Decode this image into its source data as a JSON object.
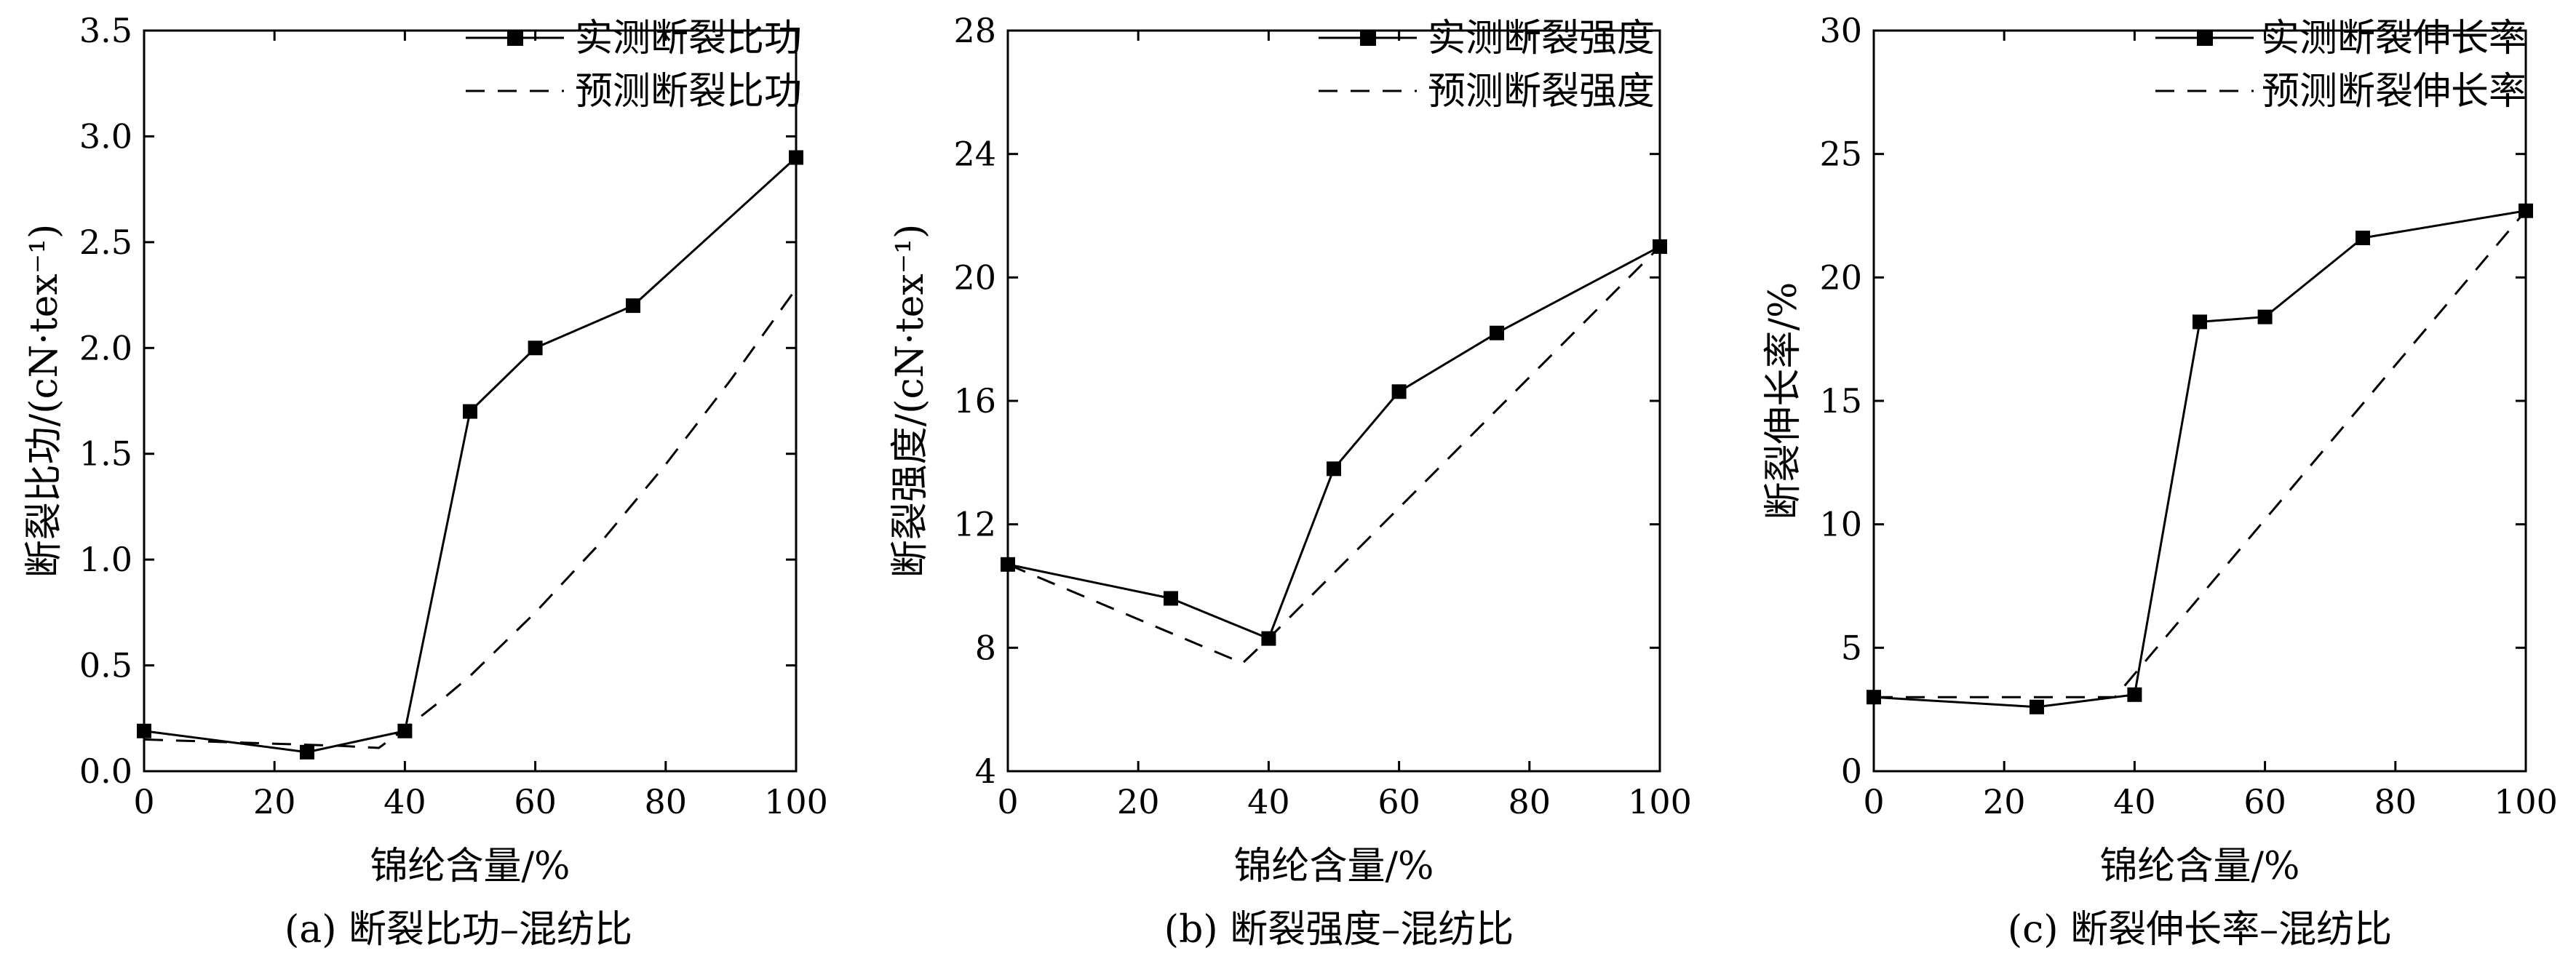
{
  "chart_data": [
    {
      "type": "line",
      "caption": "(a) 断裂比功–混纺比",
      "xlabel": "锦纶含量/%",
      "ylabel": "断裂比功/(cN·tex⁻¹)",
      "xlim": [
        0,
        100
      ],
      "ylim": [
        0,
        3.5
      ],
      "x_ticks": [
        0,
        20,
        40,
        60,
        80,
        100
      ],
      "y_ticks": [
        0.0,
        0.5,
        1.0,
        1.5,
        2.0,
        2.5,
        3.0,
        3.5
      ],
      "y_tick_labels": [
        "0.0",
        "0.5",
        "1.0",
        "1.5",
        "2.0",
        "2.5",
        "3.0",
        "3.5"
      ],
      "legend_position": "top-right",
      "grid": false,
      "series": [
        {
          "name": "实测断裂比功",
          "style": "solid-square-markers",
          "x": [
            0,
            25,
            40,
            50,
            60,
            75,
            100
          ],
          "y": [
            0.19,
            0.09,
            0.19,
            1.7,
            2.0,
            2.2,
            2.9
          ]
        },
        {
          "name": "预测断裂比功",
          "style": "dashed",
          "x": [
            0,
            10,
            20,
            30,
            36,
            40,
            45,
            50,
            60,
            70,
            80,
            90,
            100
          ],
          "y": [
            0.15,
            0.14,
            0.13,
            0.12,
            0.11,
            0.2,
            0.32,
            0.45,
            0.75,
            1.08,
            1.45,
            1.85,
            2.28
          ]
        }
      ]
    },
    {
      "type": "line",
      "caption": "(b) 断裂强度–混纺比",
      "xlabel": "锦纶含量/%",
      "ylabel": "断裂强度/(cN·tex⁻¹)",
      "xlim": [
        0,
        100
      ],
      "ylim": [
        4,
        28
      ],
      "x_ticks": [
        0,
        20,
        40,
        60,
        80,
        100
      ],
      "y_ticks": [
        4,
        8,
        12,
        16,
        20,
        24,
        28
      ],
      "y_tick_labels": [
        "4",
        "8",
        "12",
        "16",
        "20",
        "24",
        "28"
      ],
      "legend_position": "top-right",
      "grid": false,
      "series": [
        {
          "name": "实测断裂强度",
          "style": "solid-square-markers",
          "x": [
            0,
            25,
            40,
            50,
            60,
            75,
            100
          ],
          "y": [
            10.7,
            9.6,
            8.3,
            13.8,
            16.3,
            18.2,
            21.0
          ]
        },
        {
          "name": "预测断裂强度",
          "style": "dashed",
          "x": [
            0,
            36,
            40,
            100
          ],
          "y": [
            10.7,
            7.5,
            8.3,
            21.0
          ]
        }
      ]
    },
    {
      "type": "line",
      "caption": "(c) 断裂伸长率–混纺比",
      "xlabel": "锦纶含量/%",
      "ylabel": "断裂伸长率/%",
      "xlim": [
        0,
        100
      ],
      "ylim": [
        0,
        30
      ],
      "x_ticks": [
        0,
        20,
        40,
        60,
        80,
        100
      ],
      "y_ticks": [
        0,
        5,
        10,
        15,
        20,
        25,
        30
      ],
      "y_tick_labels": [
        "0",
        "5",
        "10",
        "15",
        "20",
        "25",
        "30"
      ],
      "legend_position": "top-right",
      "grid": false,
      "series": [
        {
          "name": "实测断裂伸长率",
          "style": "solid-square-markers",
          "x": [
            0,
            25,
            40,
            50,
            60,
            75,
            100
          ],
          "y": [
            3.0,
            2.6,
            3.1,
            18.2,
            18.4,
            21.6,
            22.7
          ]
        },
        {
          "name": "预测断裂伸长率",
          "style": "dashed",
          "x": [
            0,
            37,
            100
          ],
          "y": [
            3.0,
            3.0,
            22.7
          ]
        }
      ]
    }
  ]
}
